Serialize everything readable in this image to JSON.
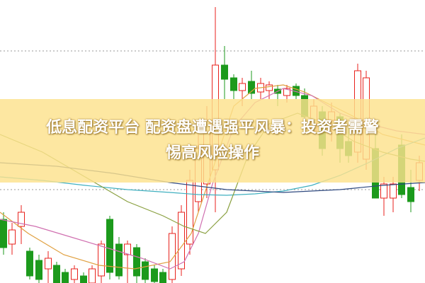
{
  "headline": {
    "line1": "低息配资平台 配资盘遭遇强平风暴：投资者需警",
    "line2": "惕高风险操作"
  }
}
